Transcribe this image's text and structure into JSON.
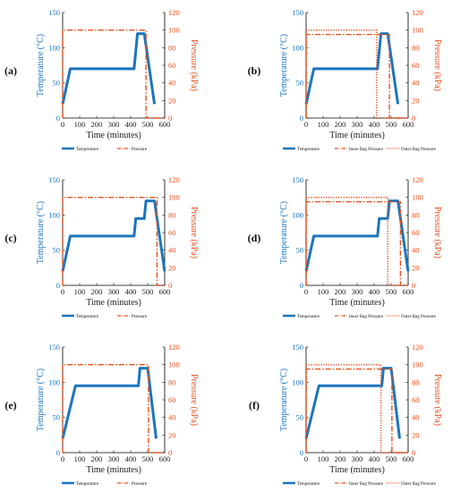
{
  "colors": {
    "temperature": "#1b75bc",
    "pressure": "#e8501c",
    "axis": "#000000"
  },
  "chart_data": [
    {
      "panel": "(a)",
      "type": "line",
      "xlabel": "Time (minutes)",
      "ylabel_left": "Temperature (°C)",
      "ylabel_right": "Pressure (kPa)",
      "xlim": [
        0,
        600
      ],
      "ylim_left": [
        0,
        150
      ],
      "ylim_right": [
        0,
        120
      ],
      "xticks": [
        "0",
        "100",
        "200",
        "300",
        "400",
        "500",
        "600"
      ],
      "yticks_left": [
        "0",
        "50",
        "100",
        "150"
      ],
      "yticks_right": [
        "0",
        "20",
        "40",
        "60",
        "80",
        "100",
        "120"
      ],
      "series": [
        {
          "name": "Temperature",
          "axis": "left",
          "style": "solid",
          "x": [
            0,
            45,
            420,
            440,
            480,
            540
          ],
          "y": [
            20,
            70,
            70,
            120,
            120,
            20
          ]
        },
        {
          "name": "Pressure",
          "axis": "right",
          "style": "dashdot",
          "x": [
            0,
            0,
            490,
            490,
            600
          ],
          "y": [
            0,
            100,
            100,
            0,
            0
          ]
        }
      ]
    },
    {
      "panel": "(b)",
      "type": "line",
      "xlabel": "Time (minutes)",
      "ylabel_left": "Temperature (°C)",
      "ylabel_right": "Pressure (kPa)",
      "xlim": [
        0,
        600
      ],
      "ylim_left": [
        0,
        150
      ],
      "ylim_right": [
        0,
        120
      ],
      "xticks": [
        "0",
        "100",
        "200",
        "300",
        "400",
        "500",
        "600"
      ],
      "yticks_left": [
        "0",
        "50",
        "100",
        "150"
      ],
      "yticks_right": [
        "0",
        "20",
        "40",
        "60",
        "80",
        "100",
        "120"
      ],
      "series": [
        {
          "name": "Temperature",
          "axis": "left",
          "style": "solid",
          "x": [
            0,
            45,
            420,
            440,
            480,
            540
          ],
          "y": [
            20,
            70,
            70,
            120,
            120,
            20
          ]
        },
        {
          "name": "Inner Bag Pressure",
          "axis": "right",
          "style": "dashdot",
          "x": [
            0,
            0,
            490,
            490,
            600
          ],
          "y": [
            0,
            95,
            95,
            0,
            0
          ]
        },
        {
          "name": "Outer Bag Pressure",
          "axis": "right",
          "style": "dotted",
          "x": [
            0,
            0,
            415,
            415,
            600
          ],
          "y": [
            0,
            100,
            100,
            0,
            0
          ]
        }
      ]
    },
    {
      "panel": "(c)",
      "type": "line",
      "xlabel": "Time (minutes)",
      "ylabel_left": "Temperature (°C)",
      "ylabel_right": "Pressure (kPa)",
      "xlim": [
        0,
        600
      ],
      "ylim_left": [
        0,
        150
      ],
      "ylim_right": [
        0,
        120
      ],
      "xticks": [
        "0",
        "100",
        "200",
        "300",
        "400",
        "500",
        "600"
      ],
      "yticks_left": [
        "0",
        "50",
        "100",
        "150"
      ],
      "yticks_right": [
        "0",
        "20",
        "40",
        "60",
        "80",
        "100",
        "120"
      ],
      "series": [
        {
          "name": "Temperature",
          "axis": "left",
          "style": "solid",
          "x": [
            0,
            45,
            420,
            430,
            480,
            490,
            540,
            600
          ],
          "y": [
            20,
            70,
            70,
            95,
            95,
            120,
            120,
            20
          ]
        },
        {
          "name": "Pressure",
          "axis": "right",
          "style": "dashdot",
          "x": [
            0,
            0,
            555,
            555,
            600
          ],
          "y": [
            0,
            100,
            100,
            0,
            0
          ]
        }
      ]
    },
    {
      "panel": "(d)",
      "type": "line",
      "xlabel": "Time (minutes)",
      "ylabel_left": "Temperature (°C)",
      "ylabel_right": "Pressure (kPa)",
      "xlim": [
        0,
        600
      ],
      "ylim_left": [
        0,
        150
      ],
      "ylim_right": [
        0,
        120
      ],
      "xticks": [
        "0",
        "100",
        "200",
        "300",
        "400",
        "500",
        "600"
      ],
      "yticks_left": [
        "0",
        "50",
        "100",
        "150"
      ],
      "yticks_right": [
        "0",
        "20",
        "40",
        "60",
        "80",
        "100",
        "120"
      ],
      "series": [
        {
          "name": "Temperature",
          "axis": "left",
          "style": "solid",
          "x": [
            0,
            45,
            420,
            430,
            480,
            490,
            540,
            600
          ],
          "y": [
            20,
            70,
            70,
            95,
            95,
            120,
            120,
            20
          ]
        },
        {
          "name": "Inner Bag Pressure",
          "axis": "right",
          "style": "dashdot",
          "x": [
            0,
            0,
            555,
            555,
            600
          ],
          "y": [
            0,
            95,
            95,
            0,
            0
          ]
        },
        {
          "name": "Outer Bag Pressure",
          "axis": "right",
          "style": "dotted",
          "x": [
            0,
            0,
            480,
            480,
            600
          ],
          "y": [
            0,
            100,
            100,
            0,
            0
          ]
        }
      ]
    },
    {
      "panel": "(e)",
      "type": "line",
      "xlabel": "Time (minutes)",
      "ylabel_left": "Temperature (°C)",
      "ylabel_right": "Pressure (kPa)",
      "xlim": [
        0,
        600
      ],
      "ylim_left": [
        0,
        150
      ],
      "ylim_right": [
        0,
        120
      ],
      "xticks": [
        "0",
        "100",
        "200",
        "300",
        "400",
        "500",
        "600"
      ],
      "yticks_left": [
        "0",
        "50",
        "100",
        "150"
      ],
      "yticks_right": [
        "0",
        "20",
        "40",
        "60",
        "80",
        "100",
        "120"
      ],
      "series": [
        {
          "name": "Temperature",
          "axis": "left",
          "style": "solid",
          "x": [
            0,
            75,
            445,
            455,
            500,
            550
          ],
          "y": [
            20,
            95,
            95,
            120,
            120,
            20
          ]
        },
        {
          "name": "Pressure",
          "axis": "right",
          "style": "dashdot",
          "x": [
            0,
            0,
            505,
            505,
            600
          ],
          "y": [
            0,
            100,
            100,
            0,
            0
          ]
        }
      ]
    },
    {
      "panel": "(f)",
      "type": "line",
      "xlabel": "Time (minutes)",
      "ylabel_left": "Temperature (°C)",
      "ylabel_right": "Pressure (kPa)",
      "xlim": [
        0,
        600
      ],
      "ylim_left": [
        0,
        150
      ],
      "ylim_right": [
        0,
        120
      ],
      "xticks": [
        "0",
        "100",
        "200",
        "300",
        "400",
        "500",
        "600"
      ],
      "yticks_left": [
        "0",
        "50",
        "100",
        "150"
      ],
      "yticks_right": [
        "0",
        "20",
        "40",
        "60",
        "80",
        "100",
        "120"
      ],
      "series": [
        {
          "name": "Temperature",
          "axis": "left",
          "style": "solid",
          "x": [
            0,
            75,
            445,
            455,
            500,
            550
          ],
          "y": [
            20,
            95,
            95,
            120,
            120,
            20
          ]
        },
        {
          "name": "Inner Bag Pressure",
          "axis": "right",
          "style": "dashdot",
          "x": [
            0,
            0,
            505,
            505,
            600
          ],
          "y": [
            0,
            95,
            95,
            0,
            0
          ]
        },
        {
          "name": "Outer Bag Pressure",
          "axis": "right",
          "style": "dotted",
          "x": [
            0,
            0,
            440,
            440,
            600
          ],
          "y": [
            0,
            100,
            100,
            0,
            0
          ]
        }
      ]
    }
  ]
}
